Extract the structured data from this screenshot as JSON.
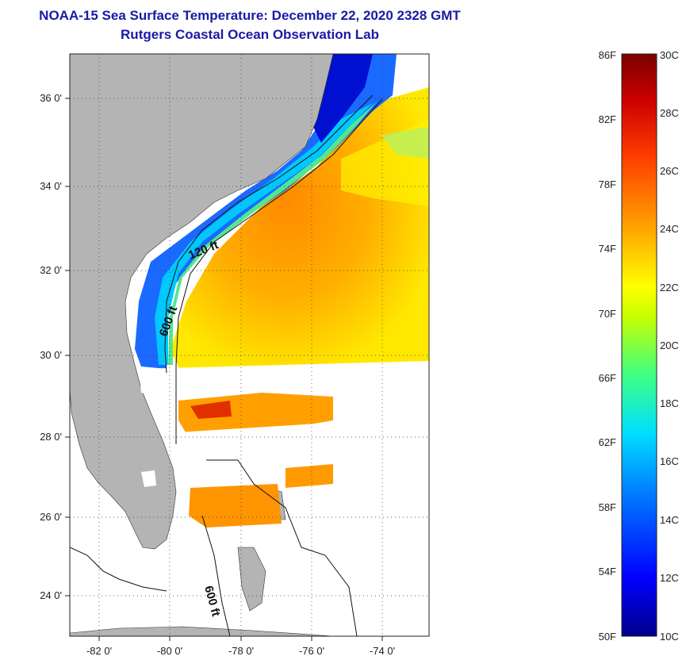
{
  "title": {
    "line1": "NOAA-15 Sea Surface Temperature:  December 22, 2020 2328 GMT",
    "line2": "Rutgers Coastal Ocean Observation Lab"
  },
  "map": {
    "lat_labels": [
      "36 0'",
      "34 0'",
      "32 0'",
      "30 0'",
      "28 0'",
      "26 0'",
      "24 0'"
    ],
    "lon_labels": [
      "-82 0'",
      "-80 0'",
      "-78 0'",
      "-76 0'",
      "-74 0'"
    ],
    "lat_range": [
      23,
      37.2
    ],
    "lon_range": [
      -83,
      -73
    ],
    "contour_labels": [
      "120 ft",
      "600 ft",
      "600 ft"
    ],
    "land_color": "#b4b4b4",
    "no_data_color": "#ffffff"
  },
  "colorbar": {
    "fahrenheit_labels": [
      "86F",
      "82F",
      "78F",
      "74F",
      "70F",
      "66F",
      "62F",
      "58F",
      "54F",
      "50F"
    ],
    "celsius_labels": [
      "30C",
      "28C",
      "26C",
      "24C",
      "22C",
      "20C",
      "18C",
      "16C",
      "14C",
      "12C",
      "10C"
    ],
    "range_c": [
      10,
      30
    ],
    "colors": [
      "#00008c",
      "#0000ff",
      "#0080ff",
      "#00e0ff",
      "#40ff80",
      "#c8ff00",
      "#ffff00",
      "#ffa500",
      "#ff4000",
      "#cc0000",
      "#7a0000"
    ]
  }
}
